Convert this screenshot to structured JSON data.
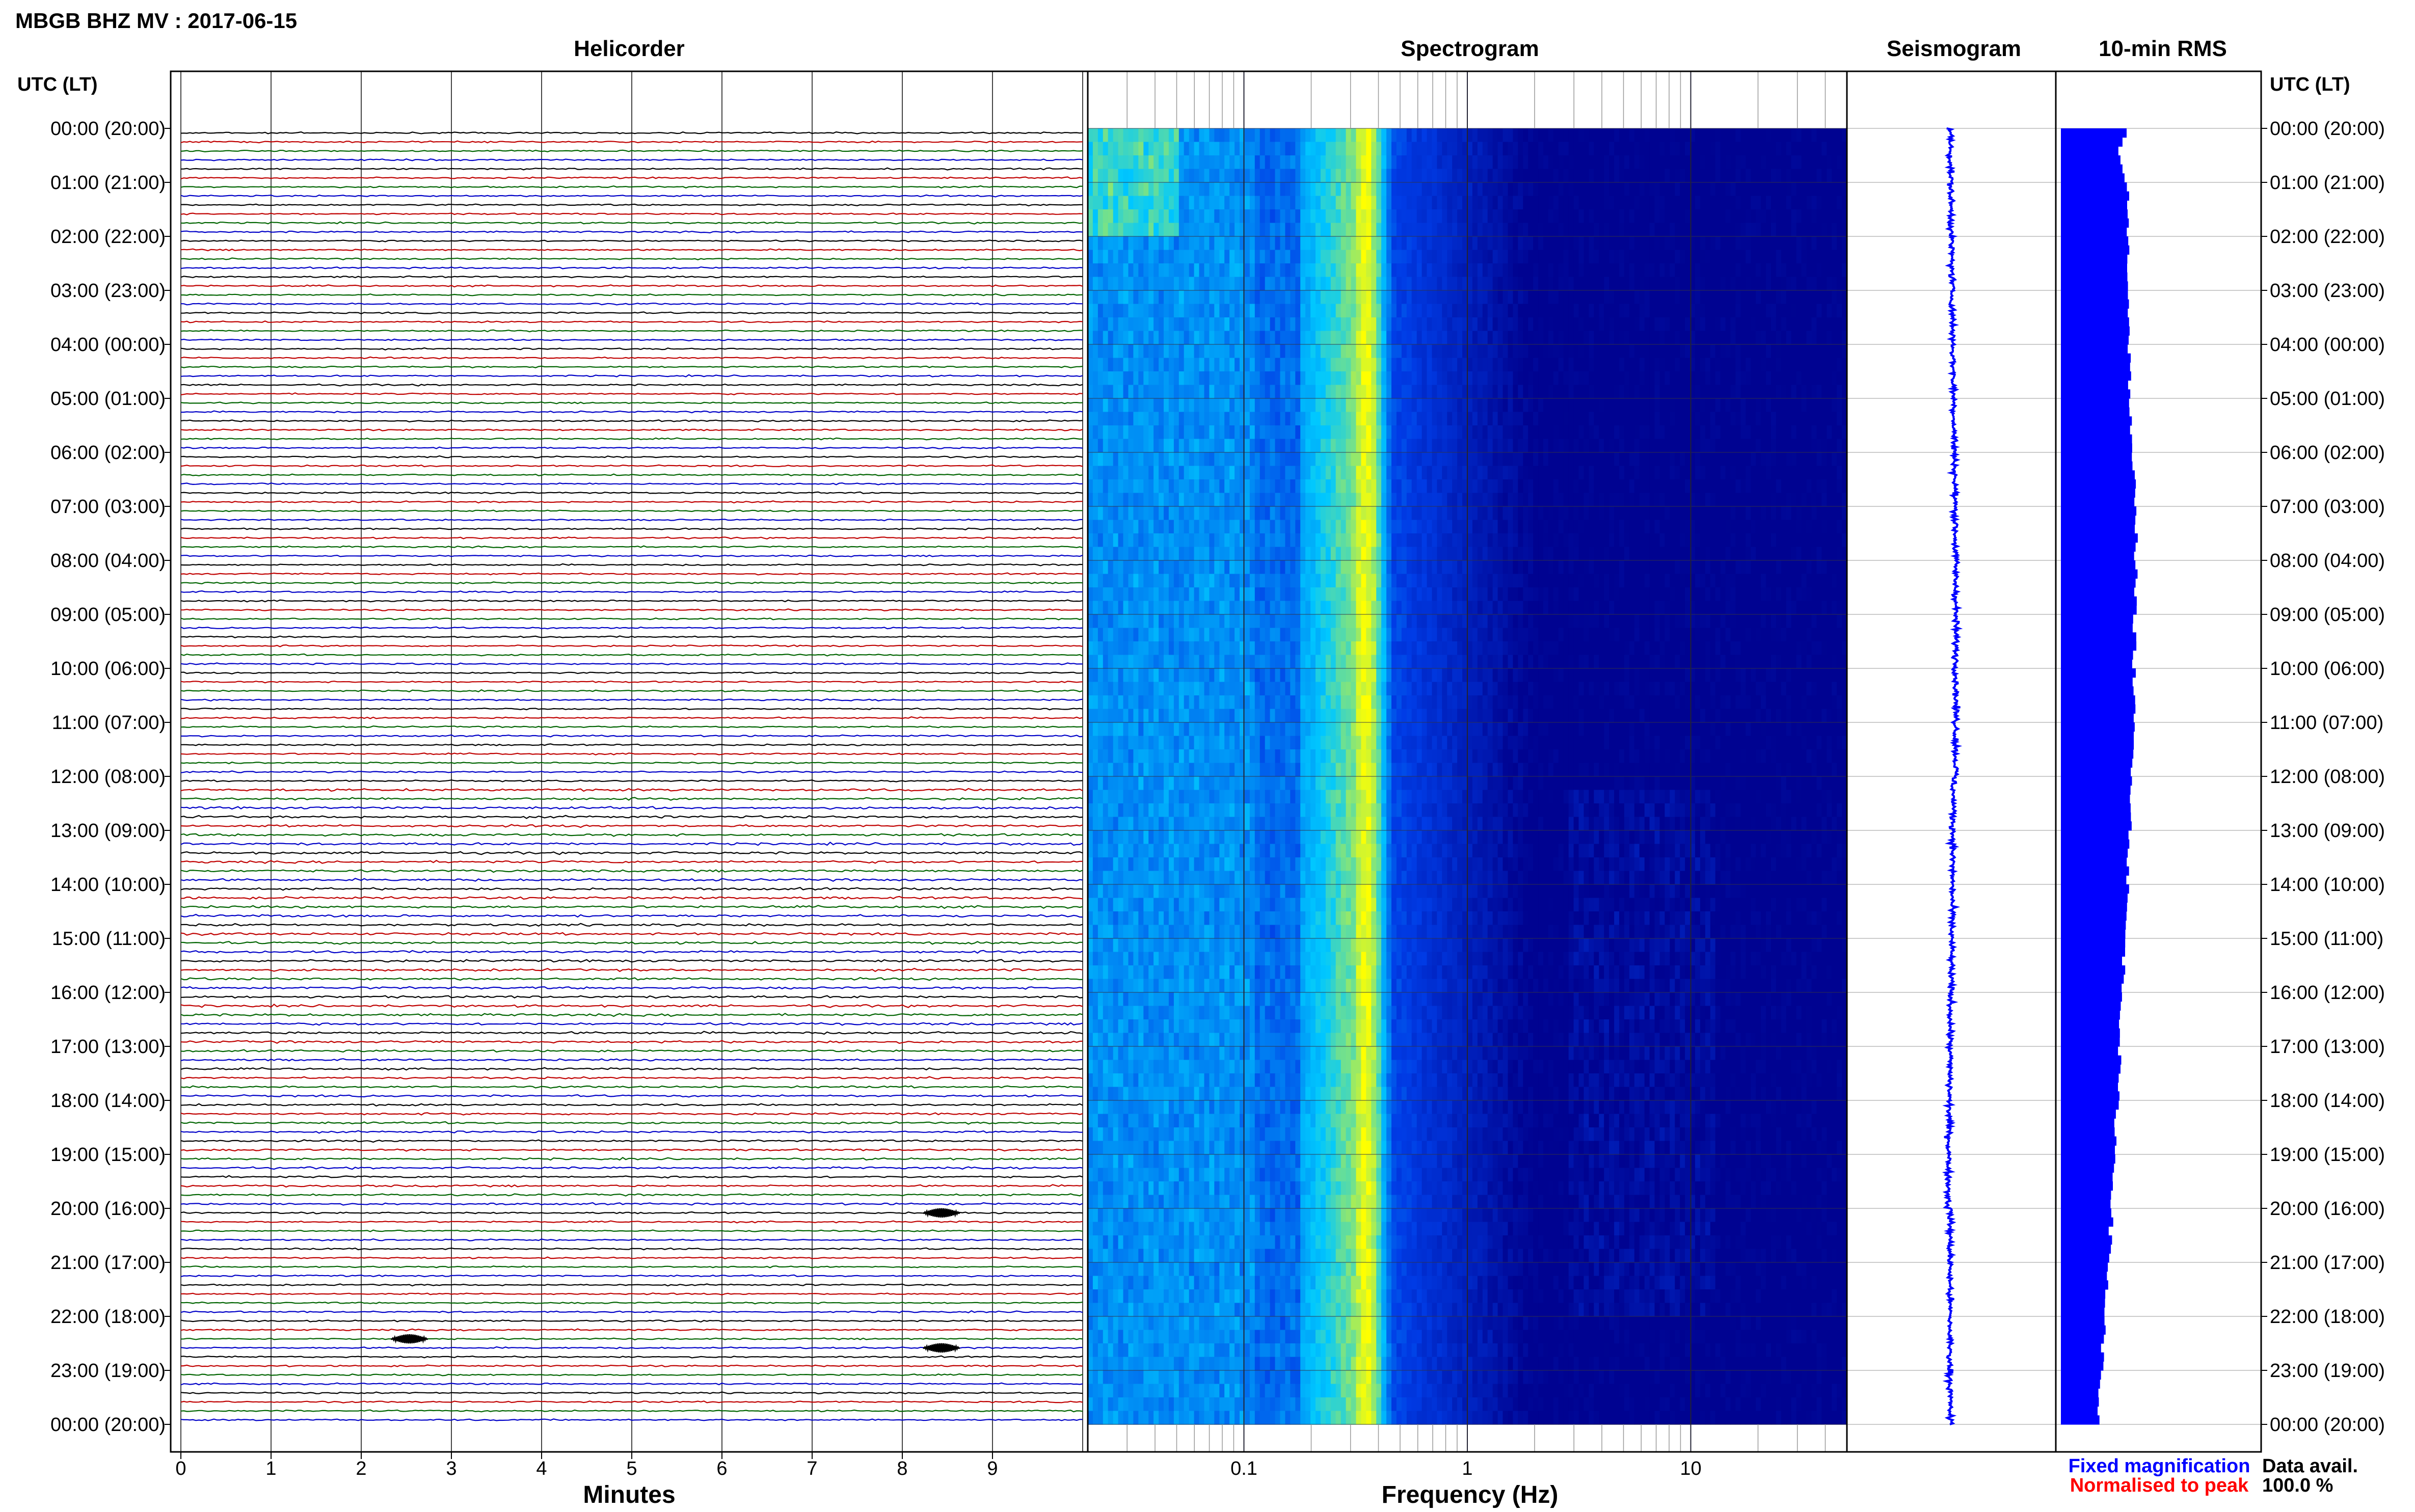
{
  "header": {
    "title": "MBGB BHZ MV : 2017-06-15",
    "panel_titles": {
      "helicorder": "Helicorder",
      "spectrogram": "Spectrogram",
      "seismogram": "Seismogram",
      "rms": "10-min RMS"
    },
    "utc_label_left": "UTC (LT)",
    "utc_label_right": "UTC (LT)"
  },
  "footer": {
    "legend_fixed": "Fixed magnification",
    "legend_normalised": "Normalised to peak",
    "data_avail_label": "Data avail.",
    "data_avail_value": "100.0 %"
  },
  "colors": {
    "trace_cycle": [
      "#000000",
      "#c00000",
      "#006400",
      "#0000c8"
    ],
    "legend_fixed": "#0000ff",
    "legend_normalised": "#ff0000",
    "seismogram": "#0000ff",
    "rms_bars": "#0000ff",
    "spectrogram_low": "#00008c",
    "spectrogram_mid": "#00c8ff",
    "spectrogram_high": "#ffff00"
  },
  "chart_data": [
    {
      "type": "line",
      "title": "Helicorder",
      "xlabel": "Minutes",
      "ylabel": "UTC (LT)",
      "xlim": [
        0,
        10
      ],
      "x_ticks": [
        "0",
        "1",
        "2",
        "3",
        "4",
        "5",
        "6",
        "7",
        "8",
        "9"
      ],
      "y_tick_labels": [
        "00:00 (20:00)",
        "01:00 (21:00)",
        "02:00 (22:00)",
        "03:00 (23:00)",
        "04:00 (00:00)",
        "05:00 (01:00)",
        "06:00 (02:00)",
        "07:00 (03:00)",
        "08:00 (04:00)",
        "09:00 (05:00)",
        "10:00 (06:00)",
        "11:00 (07:00)",
        "12:00 (08:00)",
        "13:00 (09:00)",
        "14:00 (10:00)",
        "15:00 (11:00)",
        "16:00 (12:00)",
        "17:00 (13:00)",
        "18:00 (14:00)",
        "19:00 (15:00)",
        "20:00 (16:00)",
        "21:00 (17:00)",
        "22:00 (18:00)",
        "23:00 (19:00)",
        "00:00 (20:00)"
      ],
      "rows_per_hour": 6,
      "trace_count": 144,
      "events": [
        {
          "utc": "20:00",
          "minute": 8.4
        },
        {
          "utc": "22:20",
          "minute": 2.5
        },
        {
          "utc": "22:30",
          "minute": 8.4
        }
      ]
    },
    {
      "type": "heatmap",
      "title": "Spectrogram",
      "xlabel": "Frequency (Hz)",
      "x_scale": "log",
      "xlim": [
        0.02,
        50
      ],
      "x_ticks": [
        "0.1",
        "1",
        "10"
      ],
      "peak_frequency_hz": 0.35,
      "time_range_hours": [
        0,
        24
      ]
    },
    {
      "type": "line",
      "title": "Seismogram",
      "time_range_hours": [
        0,
        24
      ]
    },
    {
      "type": "bar",
      "title": "10-min RMS",
      "interval_minutes": 10,
      "bar_count": 144,
      "relative_values_start": [
        0.32,
        0.3,
        0.28,
        0.29,
        0.3,
        0.31
      ],
      "profile_description_hours": [
        0,
        6,
        7,
        9,
        12,
        16,
        20,
        24
      ],
      "relative_profile": [
        0.32,
        0.34,
        0.37,
        0.36,
        0.35,
        0.3,
        0.25,
        0.18
      ]
    }
  ]
}
